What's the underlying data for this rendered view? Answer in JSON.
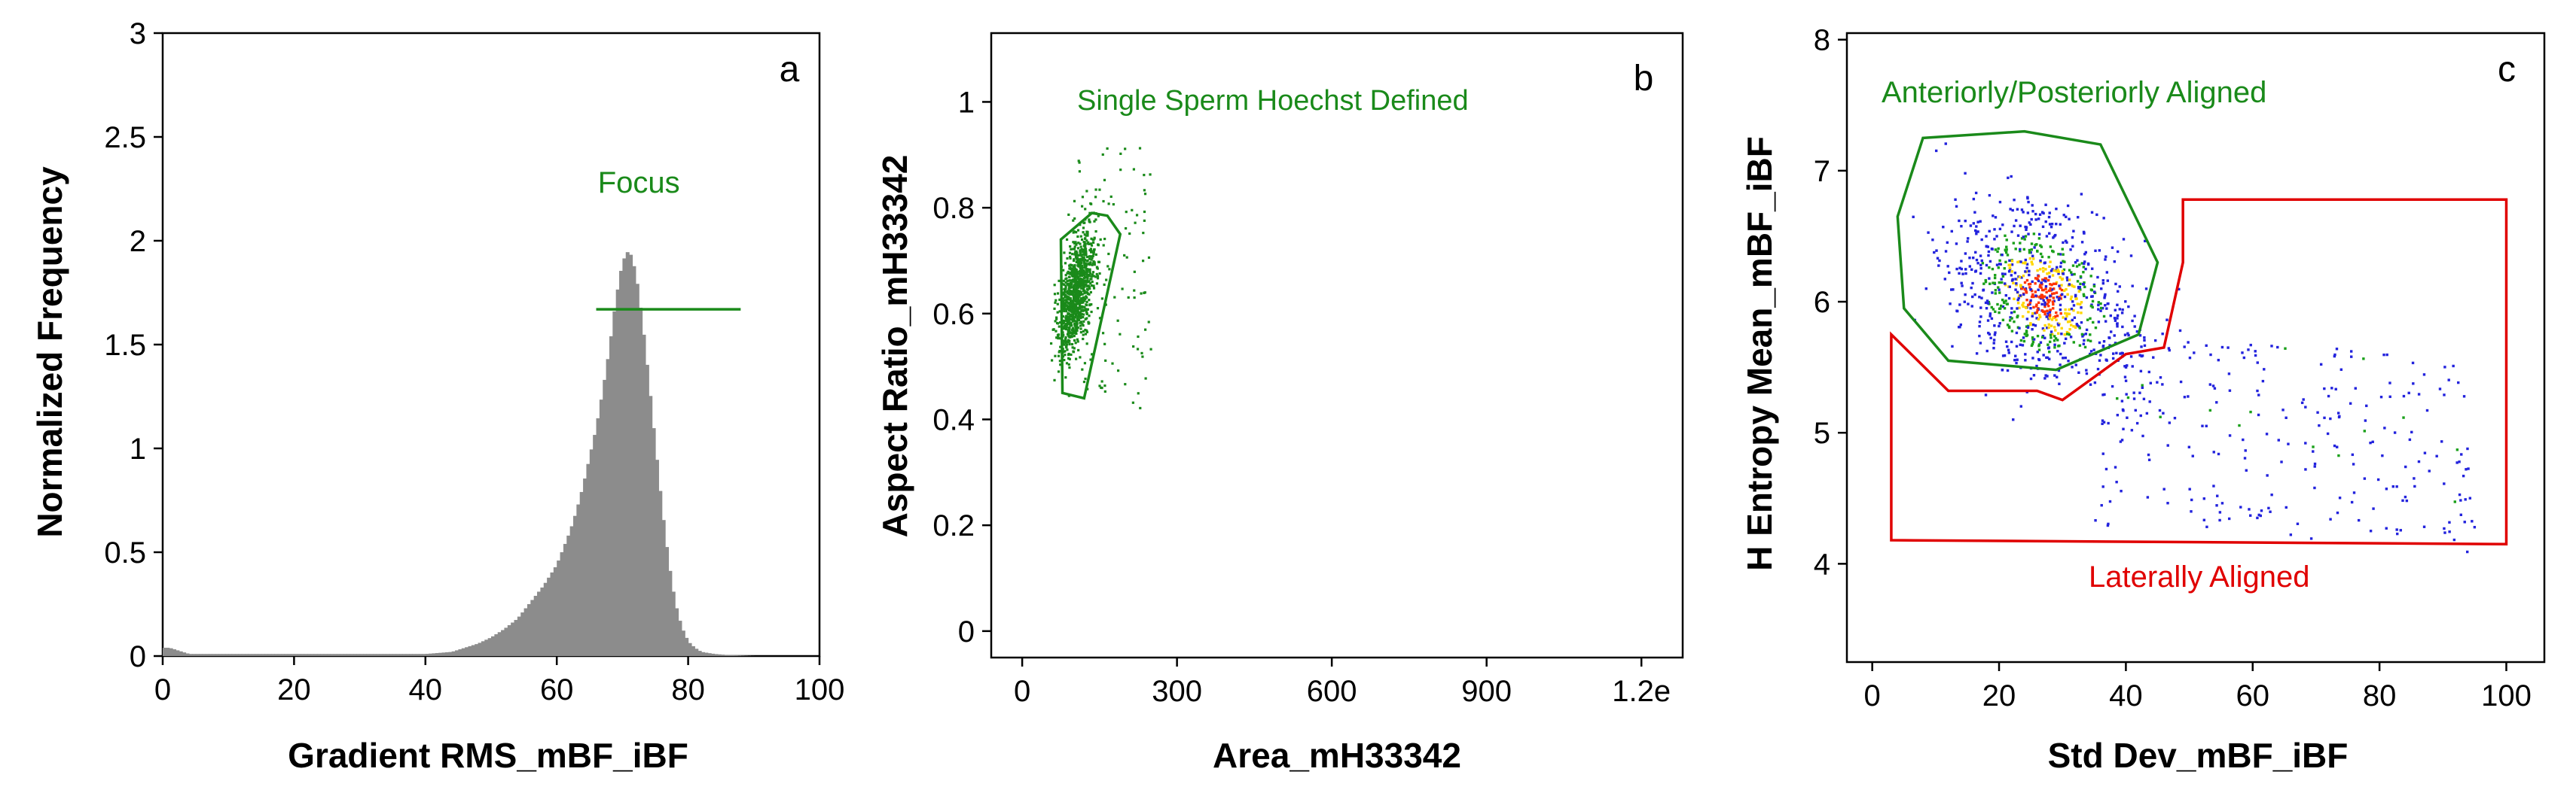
{
  "chart_data": [
    {
      "type": "bar",
      "panel_label": "a",
      "xlabel": "Gradient RMS_mBF_iBF",
      "ylabel": "Normalized Frequency",
      "xlim": [
        0,
        100
      ],
      "ylim": [
        0,
        3
      ],
      "xticks": [
        0,
        20,
        40,
        60,
        80,
        100
      ],
      "yticks": [
        0,
        0.5,
        1,
        1.5,
        2,
        2.5,
        3
      ],
      "ytick_labels": [
        "0",
        "0.5",
        "1",
        "1.5",
        "2",
        "2.5",
        "3"
      ],
      "bar_color": "#8c8c8c",
      "gate": {
        "name": "Focus",
        "x1": 66,
        "x2": 88,
        "y": 1.67,
        "color": "#1a8a1a"
      },
      "histogram": {
        "x": [
          0,
          1,
          2,
          3,
          4,
          5,
          10,
          20,
          30,
          40,
          44,
          46,
          48,
          50,
          52,
          54,
          56,
          58,
          60,
          61,
          62,
          63,
          64,
          65,
          66,
          67,
          68,
          69,
          70,
          71,
          72,
          73,
          74,
          75,
          76,
          77,
          78,
          79,
          80,
          81,
          82,
          84,
          86,
          90,
          100
        ],
        "values": [
          0.04,
          0.04,
          0.03,
          0.02,
          0.01,
          0.01,
          0.01,
          0.01,
          0.01,
          0.01,
          0.02,
          0.04,
          0.06,
          0.09,
          0.13,
          0.18,
          0.26,
          0.34,
          0.44,
          0.52,
          0.6,
          0.7,
          0.82,
          0.96,
          1.1,
          1.28,
          1.48,
          1.72,
          1.9,
          1.96,
          1.85,
          1.62,
          1.33,
          1.02,
          0.72,
          0.46,
          0.26,
          0.14,
          0.07,
          0.04,
          0.02,
          0.01,
          0.005,
          0.0,
          0.0
        ]
      }
    },
    {
      "type": "scatter",
      "panel_label": "b",
      "xlabel": "Area_mH33342",
      "ylabel": "Aspect Ratio_mH33342",
      "xlim": [
        -60,
        1280
      ],
      "ylim": [
        -0.05,
        1.13
      ],
      "xticks": [
        0,
        300,
        600,
        900,
        1200
      ],
      "xtick_labels": [
        "0",
        "300",
        "600",
        "900",
        "1.2e"
      ],
      "yticks": [
        0,
        0.2,
        0.4,
        0.6,
        0.8,
        1
      ],
      "ytick_labels": [
        "0",
        "0.2",
        "0.4",
        "0.6",
        "0.8",
        "1"
      ],
      "gate": {
        "name": "Single Sperm Hoechst Defined",
        "color": "#1a8a1a",
        "points": [
          [
            78,
            0.45
          ],
          [
            120,
            0.44
          ],
          [
            190,
            0.75
          ],
          [
            165,
            0.785
          ],
          [
            135,
            0.79
          ],
          [
            75,
            0.74
          ]
        ]
      },
      "population": {
        "color": "#1a8a1a",
        "x_center": 105,
        "y_center": 0.64,
        "count": 1100
      }
    },
    {
      "type": "scatter",
      "panel_label": "c",
      "xlabel": "Std Dev_mBF_iBF",
      "ylabel": "H Entropy Mean_mBF_iBF",
      "xlim": [
        -4,
        106
      ],
      "ylim": [
        3.25,
        8.05
      ],
      "xticks": [
        0,
        20,
        40,
        60,
        80,
        100
      ],
      "yticks": [
        4,
        5,
        6,
        7,
        8
      ],
      "gates": [
        {
          "name": "Anteriorly/Posteriorly Aligned",
          "color": "#1a8a1a",
          "points": [
            [
              8,
              7.25
            ],
            [
              24,
              7.3
            ],
            [
              36,
              7.2
            ],
            [
              45,
              6.3
            ],
            [
              42,
              5.75
            ],
            [
              29,
              5.48
            ],
            [
              12,
              5.55
            ],
            [
              5,
              5.95
            ],
            [
              4,
              6.65
            ]
          ]
        },
        {
          "name": "Laterally Aligned",
          "color": "#e00000",
          "points": [
            [
              3,
              5.75
            ],
            [
              3,
              4.18
            ],
            [
              100,
              4.15
            ],
            [
              100,
              6.78
            ],
            [
              49,
              6.78
            ],
            [
              49,
              6.3
            ],
            [
              46,
              5.65
            ],
            [
              40,
              5.6
            ],
            [
              30,
              5.25
            ],
            [
              26,
              5.32
            ],
            [
              12,
              5.32
            ]
          ]
        }
      ],
      "population": {
        "colors": [
          "#2222dd",
          "#1aa01a",
          "#ffd700",
          "#ff3300"
        ],
        "count": 1200
      }
    }
  ]
}
